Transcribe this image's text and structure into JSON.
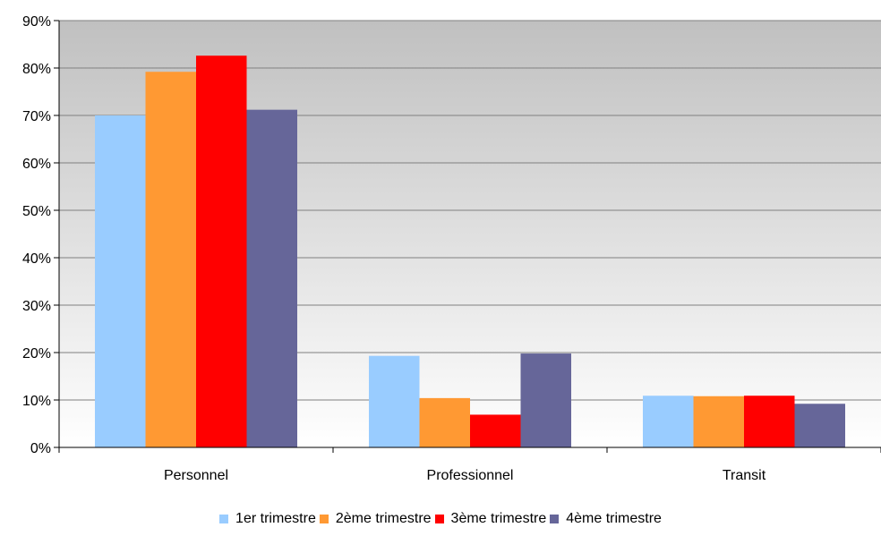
{
  "chart_data": {
    "type": "bar",
    "title": "",
    "xlabel": "",
    "ylabel": "",
    "categories": [
      "Personnel",
      "Professionnel",
      "Transit"
    ],
    "ylim": [
      0,
      90
    ],
    "yticks": [
      "0%",
      "10%",
      "20%",
      "30%",
      "40%",
      "50%",
      "60%",
      "70%",
      "80%",
      "90%"
    ],
    "grid": true,
    "legend_position": "bottom",
    "series": [
      {
        "name": "1er trimestre",
        "color": "#99ccff",
        "values": [
          70,
          19.3,
          10.9
        ]
      },
      {
        "name": "2ème trimestre",
        "color": "#ff9933",
        "values": [
          79.2,
          10.4,
          10.8
        ]
      },
      {
        "name": "3ème trimestre",
        "color": "#ff0000",
        "values": [
          82.6,
          6.9,
          10.9
        ]
      },
      {
        "name": "4ème trimestre",
        "color": "#666699",
        "values": [
          71.2,
          19.8,
          9.2
        ]
      }
    ]
  }
}
